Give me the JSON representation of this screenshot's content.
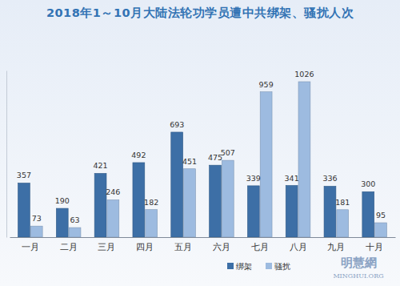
{
  "chart_data": {
    "type": "bar",
    "title": "2018年1～10月大陆法轮功学员遭中共绑架、骚扰人次",
    "categories": [
      "一月",
      "二月",
      "三月",
      "四月",
      "五月",
      "六月",
      "七月",
      "八月",
      "九月",
      "十月"
    ],
    "series": [
      {
        "name": "绑架",
        "color": "#3d6fa6",
        "values": [
          357,
          190,
          421,
          492,
          693,
          475,
          339,
          341,
          336,
          300
        ]
      },
      {
        "name": "骚扰",
        "color": "#9dbbe0",
        "values": [
          73,
          63,
          246,
          182,
          451,
          507,
          959,
          1026,
          181,
          95
        ]
      }
    ],
    "ylim": [
      0,
      1100
    ],
    "yticks": [],
    "tick_labels": "x",
    "data_labels": true,
    "legend": "lower right",
    "grid": false,
    "annotations": [
      "明慧網",
      "MINGHUI.ORG"
    ]
  }
}
